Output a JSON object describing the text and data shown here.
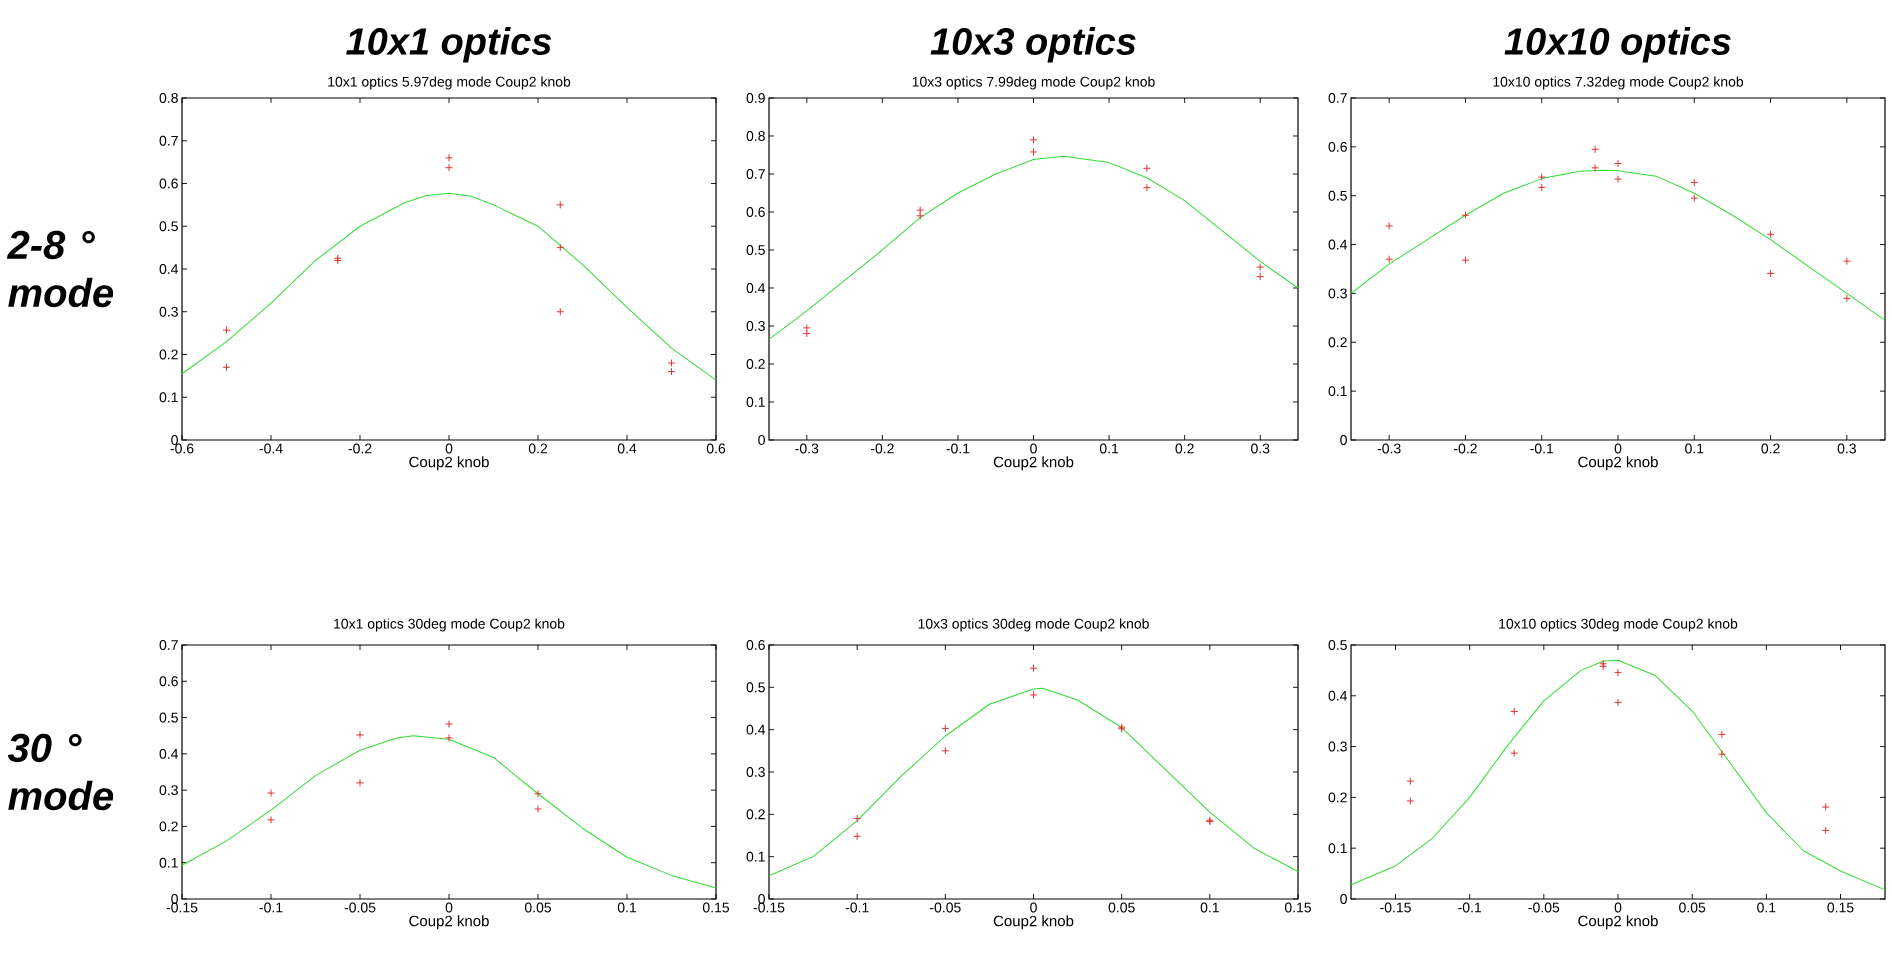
{
  "chart_data": [
    {
      "type": "scatter",
      "title": "10x1 optics",
      "subtitle": "10x1 optics 5.97deg mode Coup2 knob",
      "xlabel": "Coup2 knob",
      "xlim": [
        -0.6,
        0.6
      ],
      "ylim": [
        0,
        0.8
      ],
      "xticks": [
        -0.6,
        -0.4,
        -0.2,
        0,
        0.2,
        0.4,
        0.6
      ],
      "yticks": [
        0,
        0.1,
        0.2,
        0.3,
        0.4,
        0.5,
        0.6,
        0.7,
        0.8
      ],
      "annotations": [
        "2-8 ° mode"
      ],
      "series": [
        {
          "marker": "cross",
          "color": "#e02020",
          "x": [
            -0.5,
            -0.5,
            -0.25,
            -0.25,
            0,
            0,
            0.25,
            0.25,
            0.25,
            0.5,
            0.5
          ],
          "values": [
            0.257,
            0.17,
            0.42,
            0.425,
            0.66,
            0.637,
            0.55,
            0.45,
            0.3,
            0.18,
            0.16
          ]
        },
        {
          "type": "line",
          "color": "#33dd33",
          "x": [
            -0.6,
            -0.5,
            -0.4,
            -0.3,
            -0.2,
            -0.1,
            -0.05,
            0,
            0.05,
            0.1,
            0.2,
            0.3,
            0.4,
            0.5,
            0.6
          ],
          "values": [
            0.155,
            0.23,
            0.32,
            0.42,
            0.5,
            0.555,
            0.572,
            0.577,
            0.57,
            0.55,
            0.5,
            0.41,
            0.31,
            0.215,
            0.14
          ]
        }
      ]
    },
    {
      "type": "scatter",
      "title": "10x3 optics",
      "subtitle": "10x3 optics 7.99deg mode Coup2 knob",
      "xlabel": "Coup2 knob",
      "xlim": [
        -0.35,
        0.35
      ],
      "ylim": [
        0,
        0.9
      ],
      "xticks": [
        -0.3,
        -0.2,
        -0.1,
        0,
        0.1,
        0.2,
        0.3
      ],
      "yticks": [
        0,
        0.1,
        0.2,
        0.3,
        0.4,
        0.5,
        0.6,
        0.7,
        0.8,
        0.9
      ],
      "series": [
        {
          "marker": "cross",
          "color": "#e02020",
          "x": [
            -0.3,
            -0.3,
            -0.15,
            -0.15,
            0,
            0,
            0.15,
            0.15,
            0.3,
            0.3
          ],
          "values": [
            0.295,
            0.28,
            0.605,
            0.59,
            0.79,
            0.758,
            0.715,
            0.664,
            0.455,
            0.43
          ]
        },
        {
          "type": "line",
          "color": "#33dd33",
          "x": [
            -0.35,
            -0.3,
            -0.25,
            -0.2,
            -0.15,
            -0.1,
            -0.05,
            0,
            0.04,
            0.1,
            0.15,
            0.2,
            0.25,
            0.3,
            0.35
          ],
          "values": [
            0.265,
            0.34,
            0.42,
            0.5,
            0.585,
            0.65,
            0.7,
            0.738,
            0.747,
            0.73,
            0.69,
            0.63,
            0.55,
            0.47,
            0.4
          ]
        }
      ]
    },
    {
      "type": "scatter",
      "title": "10x10 optics",
      "subtitle": "10x10 optics 7.32deg mode Coup2 knob",
      "xlabel": "Coup2 knob",
      "xlim": [
        -0.35,
        0.35
      ],
      "ylim": [
        0,
        0.7
      ],
      "xticks": [
        -0.3,
        -0.2,
        -0.1,
        0,
        0.1,
        0.2,
        0.3
      ],
      "yticks": [
        0,
        0.1,
        0.2,
        0.3,
        0.4,
        0.5,
        0.6,
        0.7
      ],
      "series": [
        {
          "marker": "cross",
          "color": "#e02020",
          "x": [
            -0.3,
            -0.3,
            -0.2,
            -0.2,
            -0.1,
            -0.1,
            -0.03,
            -0.03,
            0,
            0,
            0.1,
            0.1,
            0.2,
            0.2,
            0.3,
            0.3
          ],
          "values": [
            0.438,
            0.37,
            0.46,
            0.368,
            0.538,
            0.517,
            0.595,
            0.557,
            0.566,
            0.534,
            0.527,
            0.495,
            0.421,
            0.341,
            0.366,
            0.29
          ]
        },
        {
          "type": "line",
          "color": "#33dd33",
          "x": [
            -0.35,
            -0.3,
            -0.25,
            -0.2,
            -0.15,
            -0.1,
            -0.05,
            -0.02,
            0,
            0.05,
            0.1,
            0.15,
            0.2,
            0.25,
            0.3,
            0.35
          ],
          "values": [
            0.3,
            0.36,
            0.41,
            0.46,
            0.505,
            0.535,
            0.55,
            0.552,
            0.551,
            0.54,
            0.505,
            0.46,
            0.41,
            0.355,
            0.3,
            0.245
          ]
        }
      ]
    },
    {
      "type": "scatter",
      "title": "10x1 optics 30deg mode Coup2 knob",
      "xlabel": "Coup2 knob",
      "xlim": [
        -0.15,
        0.15
      ],
      "ylim": [
        0,
        0.7
      ],
      "xticks": [
        -0.15,
        -0.1,
        -0.05,
        0,
        0.05,
        0.1,
        0.15
      ],
      "yticks": [
        0,
        0.1,
        0.2,
        0.3,
        0.4,
        0.5,
        0.6,
        0.7
      ],
      "annotations": [
        "30 ° mode"
      ],
      "series": [
        {
          "marker": "cross",
          "color": "#e02020",
          "x": [
            -0.1,
            -0.1,
            -0.05,
            -0.05,
            0,
            0,
            0.05,
            0.05
          ],
          "values": [
            0.292,
            0.218,
            0.452,
            0.32,
            0.482,
            0.444,
            0.29,
            0.248
          ]
        },
        {
          "type": "line",
          "color": "#33dd33",
          "x": [
            -0.15,
            -0.125,
            -0.1,
            -0.075,
            -0.05,
            -0.03,
            -0.02,
            0,
            0.025,
            0.05,
            0.075,
            0.1,
            0.125,
            0.15
          ],
          "values": [
            0.093,
            0.16,
            0.245,
            0.34,
            0.41,
            0.443,
            0.45,
            0.44,
            0.39,
            0.29,
            0.195,
            0.115,
            0.065,
            0.03
          ]
        }
      ]
    },
    {
      "type": "scatter",
      "title": "10x3 optics 30deg mode Coup2 knob",
      "xlabel": "Coup2 knob",
      "xlim": [
        -0.15,
        0.15
      ],
      "ylim": [
        0,
        0.6
      ],
      "xticks": [
        -0.15,
        -0.1,
        -0.05,
        0,
        0.05,
        0.1,
        0.15
      ],
      "yticks": [
        0,
        0.1,
        0.2,
        0.3,
        0.4,
        0.5,
        0.6
      ],
      "series": [
        {
          "marker": "cross",
          "color": "#e02020",
          "x": [
            -0.1,
            -0.1,
            -0.05,
            -0.05,
            0,
            0,
            0.05,
            0.05,
            0.1,
            0.1
          ],
          "values": [
            0.19,
            0.148,
            0.403,
            0.35,
            0.545,
            0.482,
            0.406,
            0.402,
            0.186,
            0.183
          ]
        },
        {
          "type": "line",
          "color": "#33dd33",
          "x": [
            -0.15,
            -0.125,
            -0.1,
            -0.075,
            -0.05,
            -0.025,
            0,
            0.005,
            0.025,
            0.05,
            0.075,
            0.1,
            0.125,
            0.15
          ],
          "values": [
            0.055,
            0.1,
            0.185,
            0.29,
            0.385,
            0.46,
            0.496,
            0.498,
            0.47,
            0.405,
            0.305,
            0.205,
            0.12,
            0.065
          ]
        }
      ]
    },
    {
      "type": "scatter",
      "title": "10x10 optics 30deg mode Coup2 knob",
      "xlabel": "Coup2 knob",
      "xlim": [
        -0.18,
        0.18
      ],
      "ylim": [
        0,
        0.5
      ],
      "xticks": [
        -0.15,
        -0.1,
        -0.05,
        0,
        0.05,
        0.1,
        0.15
      ],
      "yticks": [
        0,
        0.1,
        0.2,
        0.3,
        0.4,
        0.5
      ],
      "series": [
        {
          "marker": "cross",
          "color": "#e02020",
          "x": [
            -0.14,
            -0.14,
            -0.07,
            -0.07,
            -0.01,
            -0.01,
            0,
            0,
            0.07,
            0.07,
            0.14,
            0.14
          ],
          "values": [
            0.232,
            0.193,
            0.369,
            0.287,
            0.463,
            0.458,
            0.446,
            0.387,
            0.324,
            0.285,
            0.181,
            0.135
          ]
        },
        {
          "type": "line",
          "color": "#33dd33",
          "x": [
            -0.18,
            -0.15,
            -0.125,
            -0.1,
            -0.075,
            -0.05,
            -0.025,
            -0.01,
            0,
            0.025,
            0.05,
            0.075,
            0.1,
            0.125,
            0.15,
            0.18
          ],
          "values": [
            0.028,
            0.065,
            0.12,
            0.2,
            0.3,
            0.39,
            0.45,
            0.468,
            0.47,
            0.44,
            0.37,
            0.27,
            0.17,
            0.095,
            0.055,
            0.018
          ]
        }
      ]
    }
  ]
}
